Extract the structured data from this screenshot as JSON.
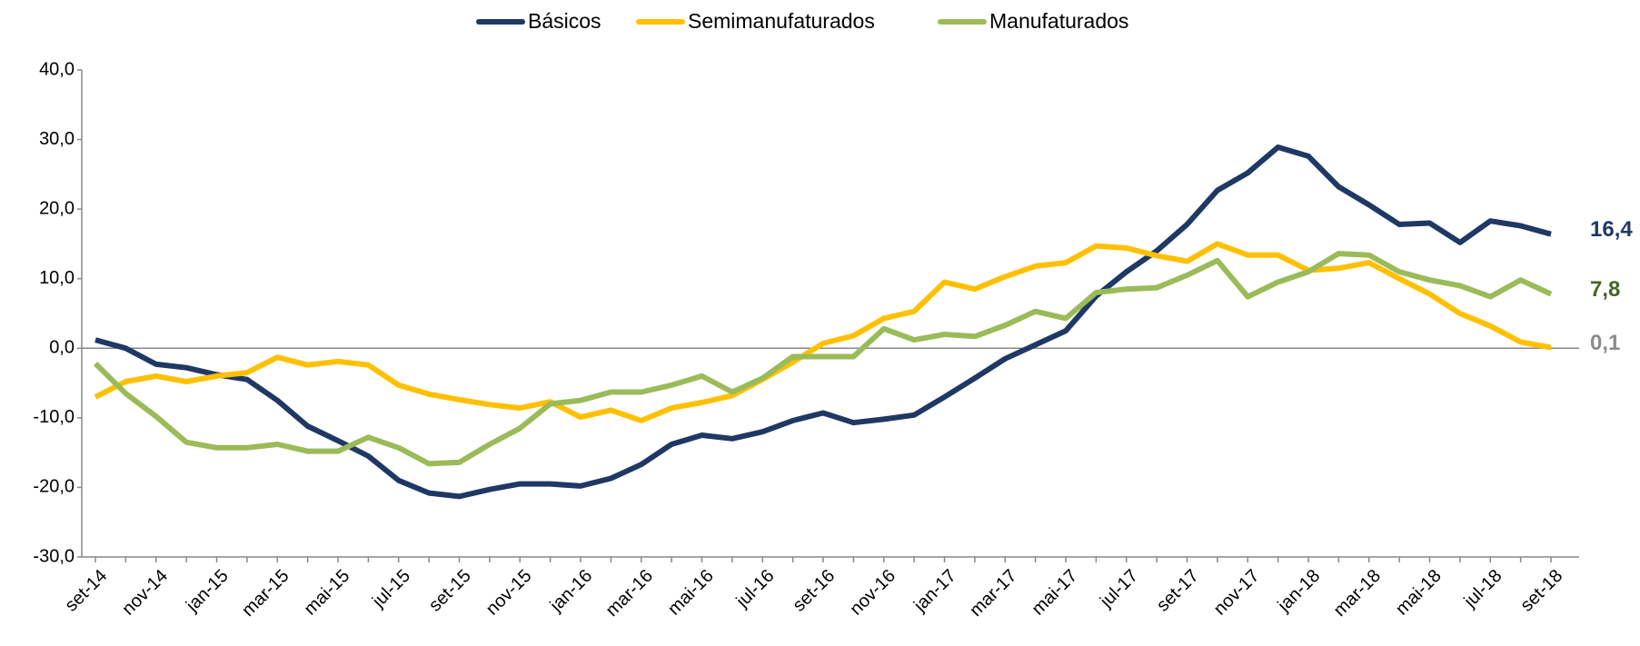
{
  "chart_data": {
    "type": "line",
    "categories": [
      "set-14",
      null,
      "nov-14",
      null,
      "jan-15",
      null,
      "mar-15",
      null,
      "mai-15",
      null,
      "jul-15",
      null,
      "set-15",
      null,
      "nov-15",
      null,
      "jan-16",
      null,
      "mar-16",
      null,
      "mai-16",
      null,
      "jul-16",
      null,
      "set-16",
      null,
      "nov-16",
      null,
      "jan-17",
      null,
      "mar-17",
      null,
      "mai-17",
      null,
      "jul-17",
      null,
      "set-17",
      null,
      "nov-17",
      null,
      "jan-18",
      null,
      "mar-18",
      null,
      "mai-18",
      null,
      "jul-18",
      null,
      "set-18"
    ],
    "series": [
      {
        "name": "Básicos",
        "color": "#1f3864",
        "label_color": "#1f3864",
        "values": [
          1.2,
          0,
          -2.3,
          -2.8,
          -3.8,
          -4.5,
          -7.5,
          -11.2,
          -13.3,
          -15.5,
          -19,
          -20.8,
          -21.3,
          -20.3,
          -19.5,
          -19.5,
          -19.8,
          -18.7,
          -16.7,
          -13.8,
          -12.5,
          -13,
          -12,
          -10.4,
          -9.3,
          -10.7,
          -10.2,
          -9.6,
          -7,
          -4.3,
          -1.5,
          0.5,
          2.5,
          7.5,
          11,
          14,
          17.8,
          22.7,
          25.2,
          28.9,
          27.6,
          23.2,
          20.6,
          17.8,
          18,
          15.2,
          18.3,
          17.6,
          16.4
        ],
        "value_labels": [
          null,
          null,
          null,
          null,
          null,
          null,
          null,
          null,
          null,
          null,
          null,
          null,
          null,
          null,
          null,
          null,
          null,
          null,
          null,
          null,
          null,
          null,
          null,
          null,
          null,
          null,
          null,
          null,
          null,
          null,
          null,
          null,
          null,
          null,
          null,
          null,
          null,
          null,
          null,
          null,
          null,
          null,
          null,
          null,
          null,
          null,
          null,
          null,
          "16,4"
        ]
      },
      {
        "name": "Semimanufaturados",
        "color": "#ffc000",
        "label_color": "#8c8c8c",
        "values": [
          -7,
          -4.8,
          -4,
          -4.8,
          -4,
          -3.5,
          -1.3,
          -2.4,
          -1.9,
          -2.4,
          -5.3,
          -6.6,
          -7.4,
          -8.1,
          -8.6,
          -7.7,
          -9.9,
          -8.9,
          -10.4,
          -8.6,
          -7.8,
          -6.8,
          -4.5,
          -2,
          0.7,
          1.8,
          4.3,
          5.3,
          9.5,
          8.5,
          10.3,
          11.8,
          12.3,
          14.7,
          14.4,
          13.3,
          12.5,
          15,
          13.4,
          13.4,
          11.2,
          11.5,
          12.3,
          10,
          7.8,
          5,
          3.2,
          0.9,
          0.1
        ],
        "value_labels": [
          null,
          null,
          null,
          null,
          null,
          null,
          null,
          null,
          null,
          null,
          null,
          null,
          null,
          null,
          null,
          null,
          null,
          null,
          null,
          null,
          null,
          null,
          null,
          null,
          null,
          null,
          null,
          null,
          null,
          null,
          null,
          null,
          null,
          null,
          null,
          null,
          null,
          null,
          null,
          null,
          null,
          null,
          null,
          null,
          null,
          null,
          null,
          null,
          "0,1"
        ]
      },
      {
        "name": "Manufaturados",
        "color": "#9bbb59",
        "label_color": "#4f6228",
        "values": [
          -2.2,
          -6.5,
          -9.8,
          -13.5,
          -14.3,
          -14.3,
          -13.8,
          -14.8,
          -14.8,
          -12.8,
          -14.3,
          -16.6,
          -16.4,
          -13.8,
          -11.5,
          -8,
          -7.5,
          -6.3,
          -6.3,
          -5.3,
          -4,
          -6.3,
          -4.3,
          -1.2,
          -1.2,
          -1.2,
          2.8,
          1.2,
          2,
          1.7,
          3.3,
          5.3,
          4.3,
          8,
          8.5,
          8.7,
          10.5,
          12.6,
          7.4,
          9.5,
          11,
          13.6,
          13.4,
          11,
          9.8,
          9,
          7.4,
          9.8,
          7.8
        ],
        "value_labels": [
          null,
          null,
          null,
          null,
          null,
          null,
          null,
          null,
          null,
          null,
          null,
          null,
          null,
          null,
          null,
          null,
          null,
          null,
          null,
          null,
          null,
          null,
          null,
          null,
          null,
          null,
          null,
          null,
          null,
          null,
          null,
          null,
          null,
          null,
          null,
          null,
          null,
          null,
          null,
          null,
          null,
          null,
          null,
          null,
          null,
          null,
          null,
          null,
          "7,8"
        ]
      }
    ],
    "ylim": [
      -30,
      40
    ],
    "yticks": [
      {
        "value": -30,
        "label": "-30,0"
      },
      {
        "value": -20,
        "label": "-20,0"
      },
      {
        "value": -10,
        "label": "-10,0"
      },
      {
        "value": 0,
        "label": "0,0"
      },
      {
        "value": 10,
        "label": "10,0"
      },
      {
        "value": 20,
        "label": "20,0"
      },
      {
        "value": 30,
        "label": "30,0"
      },
      {
        "value": 40,
        "label": "40,0"
      }
    ],
    "grid": false,
    "legend": "top"
  }
}
